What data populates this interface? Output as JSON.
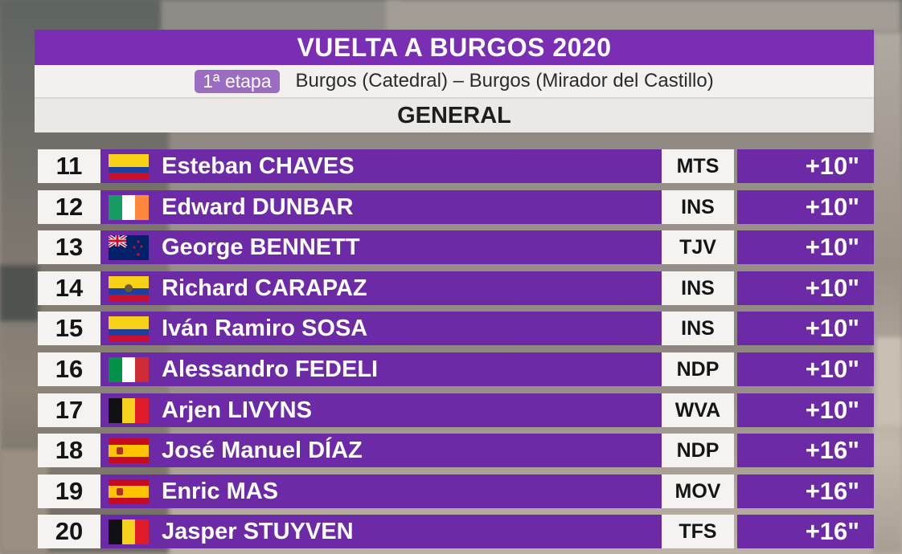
{
  "header": {
    "title": "VUELTA A BURGOS 2020",
    "stage_badge": "1ª etapa",
    "stage_route": "Burgos (Catedral) – Burgos (Mirador del Castillo)",
    "classification": "GENERAL"
  },
  "colors": {
    "purple_dark": "#7a2eb3",
    "purple_row": "#6d2aa6",
    "badge_purple": "#9a6cc2",
    "light": "#f4f3f1"
  },
  "rows": [
    {
      "pos": "11",
      "flag": "colombia",
      "name": "Esteban CHAVES",
      "team": "MTS",
      "gap": "+10\""
    },
    {
      "pos": "12",
      "flag": "ireland",
      "name": "Edward DUNBAR",
      "team": "INS",
      "gap": "+10\""
    },
    {
      "pos": "13",
      "flag": "new-zealand",
      "name": "George BENNETT",
      "team": "TJV",
      "gap": "+10\""
    },
    {
      "pos": "14",
      "flag": "ecuador",
      "name": "Richard CARAPAZ",
      "team": "INS",
      "gap": "+10\""
    },
    {
      "pos": "15",
      "flag": "colombia",
      "name": "Iván Ramiro SOSA",
      "team": "INS",
      "gap": "+10\""
    },
    {
      "pos": "16",
      "flag": "italy",
      "name": "Alessandro FEDELI",
      "team": "NDP",
      "gap": "+10\""
    },
    {
      "pos": "17",
      "flag": "belgium",
      "name": "Arjen LIVYNS",
      "team": "WVA",
      "gap": "+10\""
    },
    {
      "pos": "18",
      "flag": "spain",
      "name": "José Manuel DÍAZ",
      "team": "NDP",
      "gap": "+16\""
    },
    {
      "pos": "19",
      "flag": "spain",
      "name": "Enric MAS",
      "team": "MOV",
      "gap": "+16\""
    },
    {
      "pos": "20",
      "flag": "belgium",
      "name": "Jasper STUYVEN",
      "team": "TFS",
      "gap": "+16\""
    }
  ]
}
